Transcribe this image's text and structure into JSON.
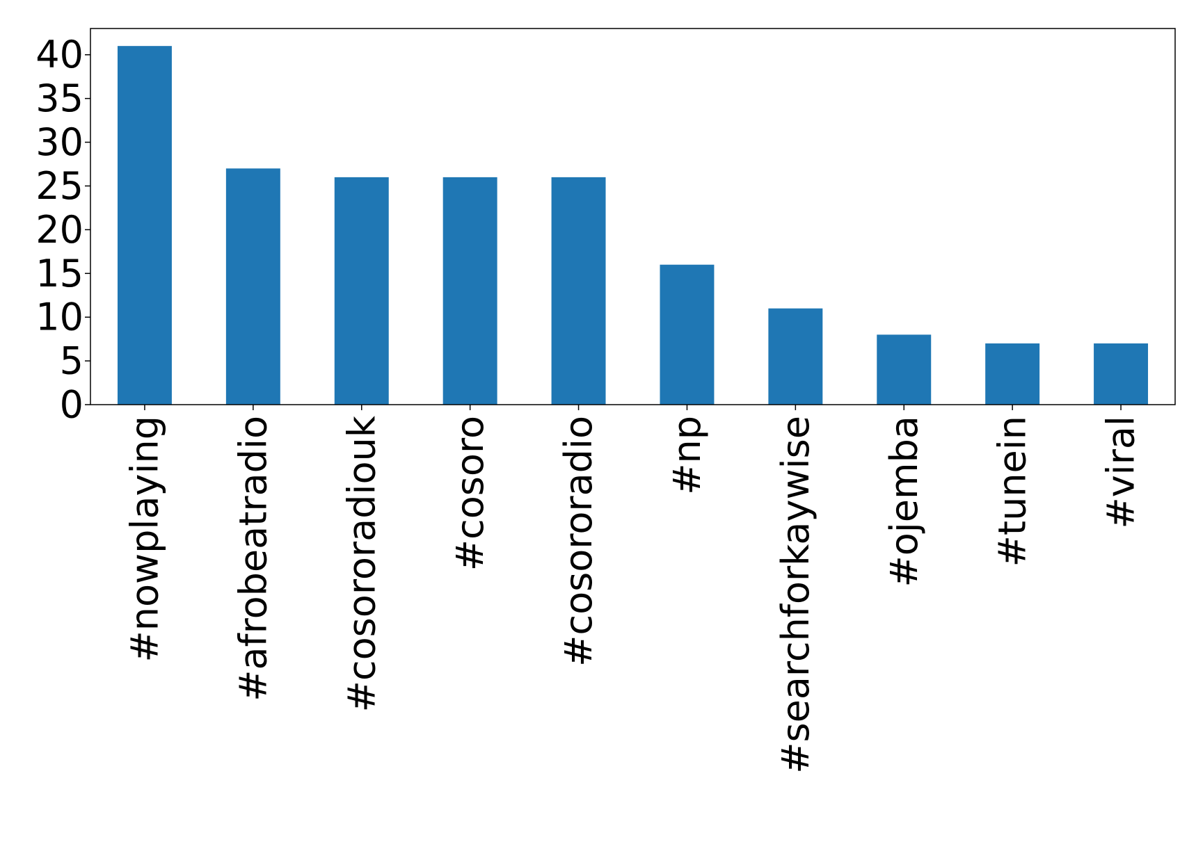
{
  "chart_data": {
    "type": "bar",
    "title": "",
    "xlabel": "",
    "ylabel": "",
    "categories": [
      "#nowplaying",
      "#afrobeatradio",
      "#cosororadiouk",
      "#cosoro",
      "#cosororadio",
      "#np",
      "#searchforkaywise",
      "#ojemba",
      "#tunein",
      "#viral"
    ],
    "values": [
      41,
      27,
      26,
      26,
      26,
      16,
      11,
      8,
      7,
      7
    ],
    "ylim": [
      0,
      43
    ],
    "yticks": [
      0,
      5,
      10,
      15,
      20,
      25,
      30,
      35,
      40
    ],
    "grid": false,
    "legend": "none",
    "bar_color": "#1f77b4"
  }
}
